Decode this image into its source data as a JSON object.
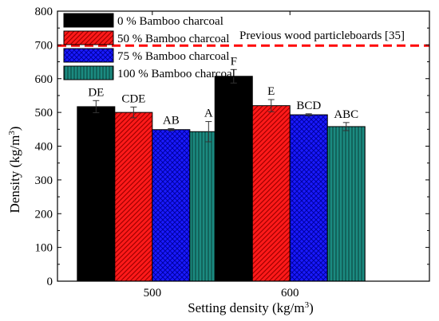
{
  "chart_data": {
    "type": "bar",
    "xlabel": "Setting density (kg/m",
    "xlabel_sup": "3",
    "xlabel_end": ")",
    "ylabel": "Density (kg/m",
    "ylabel_sup": "3",
    "ylabel_end": ")",
    "ylim": [
      0,
      800
    ],
    "yticks": [
      "0",
      "100",
      "200",
      "300",
      "400",
      "500",
      "600",
      "700",
      "800"
    ],
    "categories": [
      "500",
      "600"
    ],
    "legend_position": "top-left",
    "series": [
      {
        "name": "0 % Bamboo charcoal",
        "color": "#000000",
        "pattern": "solid",
        "values": [
          517,
          607
        ],
        "errors": [
          18,
          20
        ],
        "letters": [
          "DE",
          "F"
        ]
      },
      {
        "name": "50 % Bamboo charcoal",
        "color": "#ff1a1a",
        "pattern": "diagonal-hatch",
        "values": [
          500,
          520
        ],
        "errors": [
          16,
          18
        ],
        "letters": [
          "CDE",
          "E"
        ]
      },
      {
        "name": "75 % Bamboo charcoal",
        "color": "#1a1aff",
        "pattern": "cross-hatch",
        "values": [
          449,
          493
        ],
        "errors": [
          3,
          3
        ],
        "letters": [
          "AB",
          "BCD"
        ]
      },
      {
        "name": "100 % Bamboo charcoal",
        "color": "#1b8a80",
        "pattern": "vertical-lines",
        "values": [
          443,
          458
        ],
        "errors": [
          30,
          12
        ],
        "letters": [
          "A",
          "ABC"
        ]
      }
    ],
    "reference_line": {
      "value": 698,
      "label": "Previous wood particleboards [35]",
      "color": "#ff0000",
      "style": "dashed"
    }
  }
}
